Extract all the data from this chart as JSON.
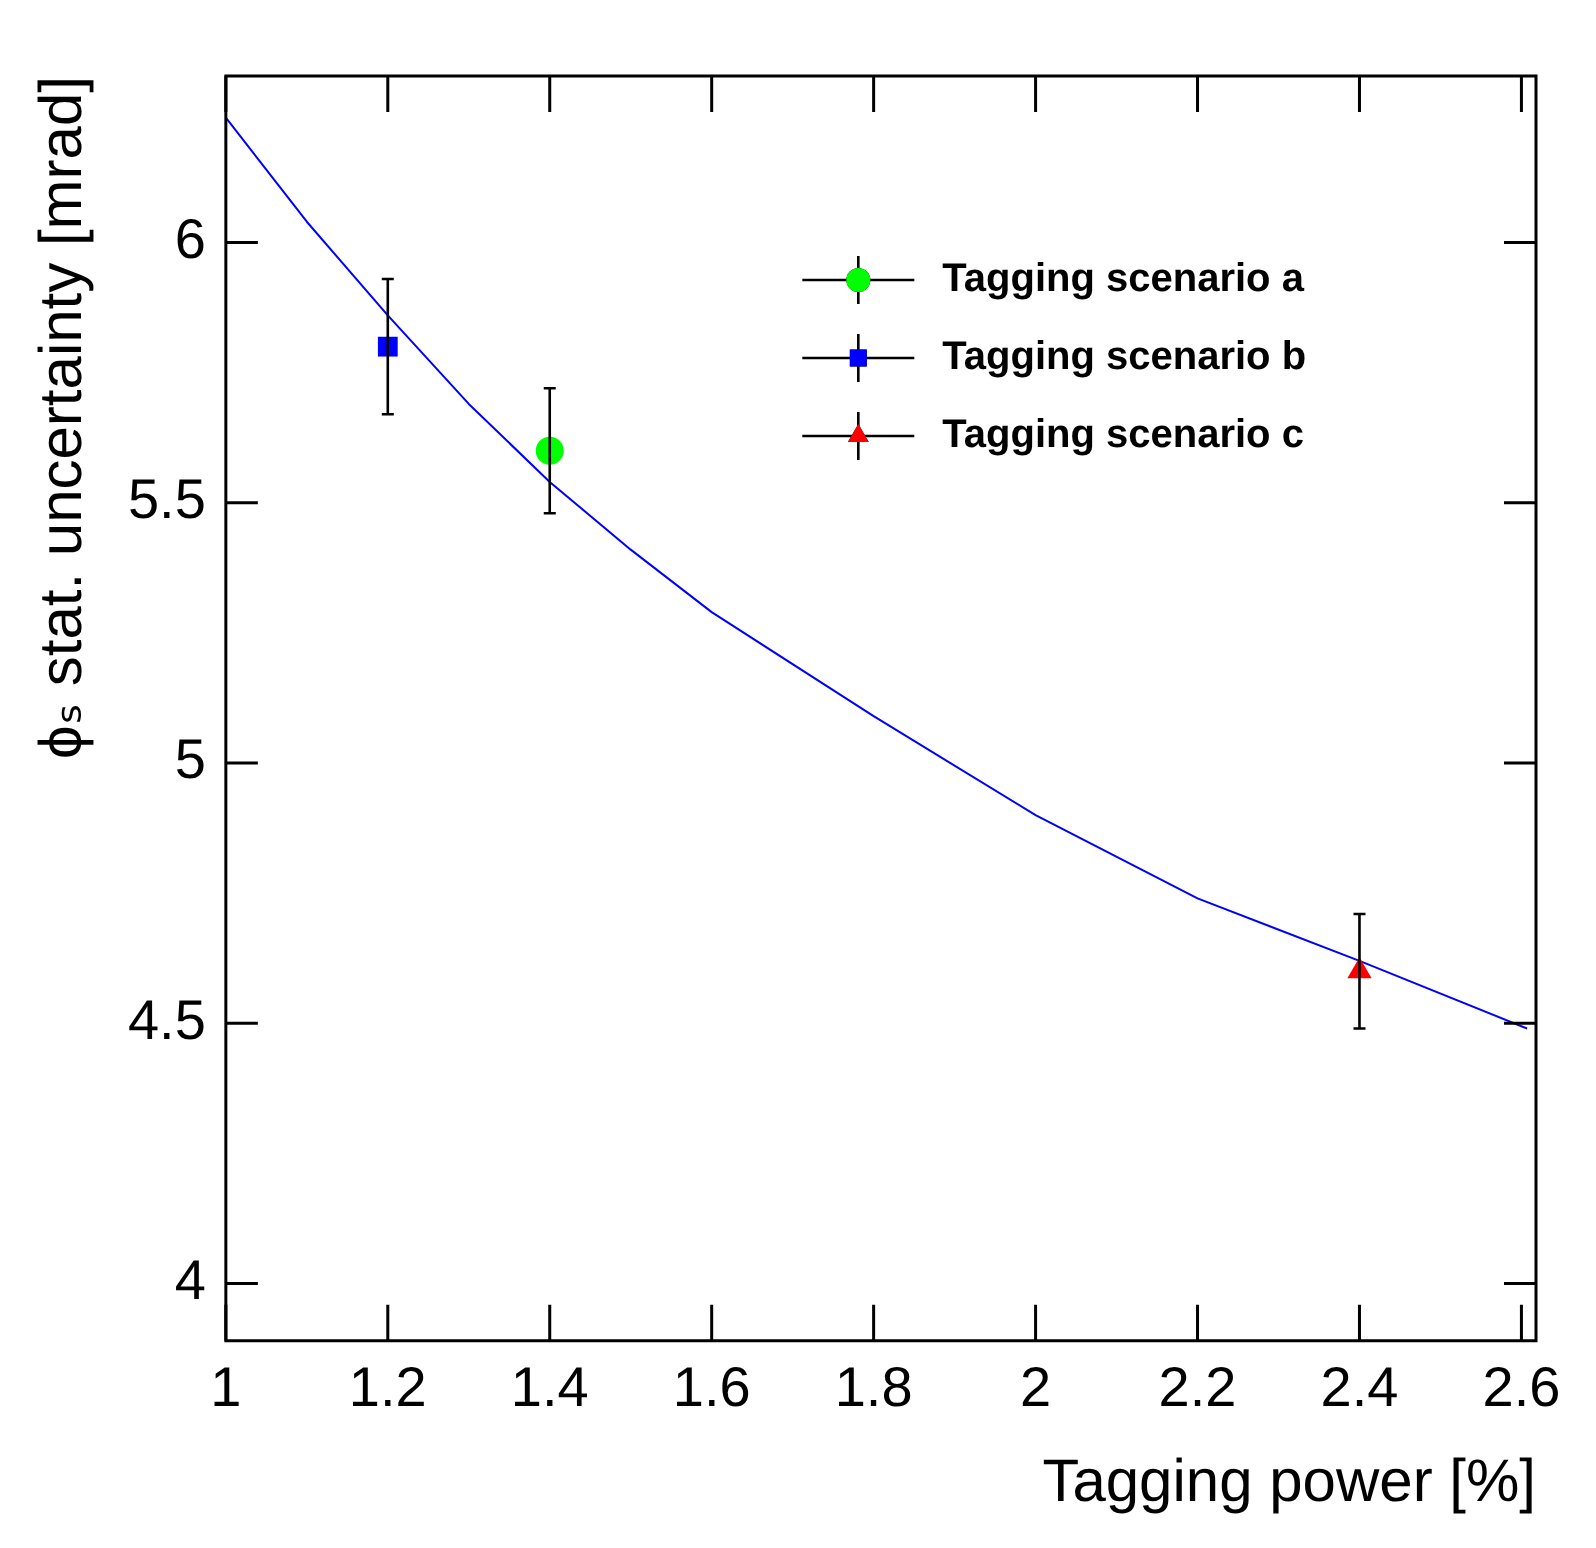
{
  "chart_data": {
    "type": "scatter",
    "xlabel": "Tagging power [%]",
    "ylabel": "ϕₛ stat. uncertainty [mrad]",
    "xlim": [
      1,
      2.618
    ],
    "xticks": [
      {
        "value": 1,
        "label": "1"
      },
      1.2,
      1.4,
      1.6,
      1.8,
      {
        "value": 2,
        "label": "2"
      },
      2.2,
      2.4,
      2.6
    ],
    "ylim": [
      3.89,
      6.32
    ],
    "yticks": [
      {
        "value": 4,
        "label": "4"
      },
      4.5,
      {
        "value": 5,
        "label": "5"
      },
      5.5,
      {
        "value": 6,
        "label": "6"
      }
    ],
    "grid": false,
    "legend": "top right",
    "series": [
      {
        "name": "Tagging scenario a",
        "color": "#00ff00",
        "marker": "circle",
        "x": [
          1.4
        ],
        "values": [
          5.6
        ],
        "errors": [
          0.12
        ]
      },
      {
        "name": "Tagging scenario b",
        "color": "#0000ff",
        "marker": "square",
        "x": [
          1.2
        ],
        "values": [
          5.8
        ],
        "errors": [
          0.13
        ]
      },
      {
        "name": "Tagging scenario c",
        "color": "#ff0000",
        "marker": "triangle",
        "x": [
          2.4
        ],
        "values": [
          4.6
        ],
        "errors": [
          0.11
        ]
      },
      {
        "type": "line",
        "color": "#0000ff",
        "marker": "none",
        "x": [
          1,
          1.1,
          1.2,
          1.3,
          1.4,
          1.5,
          1.6,
          1.8,
          2,
          2.2,
          2.4,
          2.607
        ],
        "values": [
          6.24,
          6.04,
          5.86,
          5.69,
          5.54,
          5.41,
          5.29,
          5.09,
          4.9,
          4.74,
          4.62,
          4.49
        ]
      }
    ]
  }
}
